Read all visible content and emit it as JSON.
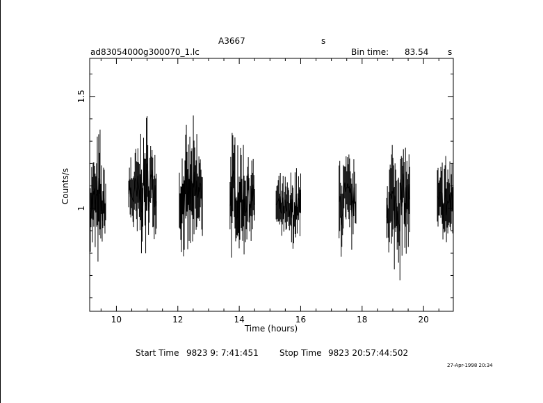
{
  "header": {
    "object": "A3667",
    "units_top": "s",
    "filename": "ad83054000g300070_1.lc",
    "bin_time_label": "Bin time:",
    "bin_time_value": "83.54",
    "bin_time_unit": "s"
  },
  "footer": {
    "start_label": "Start Time",
    "start_value": "9823  9: 7:41:451",
    "stop_label": "Stop Time",
    "stop_value": "9823 20:57:44:502",
    "timestamp": "27-Apr-1998 20:34"
  },
  "chart_data": {
    "type": "line",
    "title": "A3667",
    "xlabel": "Time (hours)",
    "ylabel": "Counts/s",
    "xlim": [
      9.13,
      20.97
    ],
    "ylim": [
      0.54,
      1.67
    ],
    "xticks": [
      10,
      12,
      14,
      16,
      18,
      20
    ],
    "yticks": [
      1,
      1.5
    ],
    "grid": false,
    "segments": [
      {
        "x": [
          9.15,
          9.25,
          9.35,
          9.45,
          9.55,
          9.65
        ],
        "y_low": [
          0.88,
          0.84,
          0.8,
          0.77,
          0.85,
          0.9
        ],
        "y_high": [
          1.18,
          1.21,
          1.23,
          1.28,
          1.16,
          1.14
        ]
      },
      {
        "x": [
          10.4,
          10.55,
          10.7,
          10.85,
          11.0,
          11.15,
          11.3
        ],
        "y_low": [
          0.95,
          0.9,
          0.85,
          0.87,
          0.88,
          0.92,
          0.95
        ],
        "y_high": [
          1.2,
          1.22,
          1.25,
          1.3,
          1.33,
          1.28,
          1.2
        ]
      },
      {
        "x": [
          12.05,
          12.25,
          12.45,
          12.65,
          12.8
        ],
        "y_low": [
          0.87,
          0.85,
          0.82,
          0.85,
          0.9
        ],
        "y_high": [
          1.18,
          1.26,
          1.3,
          1.27,
          1.22
        ]
      },
      {
        "x": [
          13.7,
          13.9,
          14.1,
          14.3,
          14.5
        ],
        "y_low": [
          0.85,
          0.84,
          0.85,
          0.87,
          0.92
        ],
        "y_high": [
          1.27,
          1.28,
          1.22,
          1.24,
          1.15
        ]
      },
      {
        "x": [
          15.2,
          15.6,
          15.8,
          16.0
        ],
        "y_low": [
          0.92,
          0.85,
          0.84,
          0.88
        ],
        "y_high": [
          1.11,
          1.1,
          1.14,
          1.13
        ]
      },
      {
        "x": [
          17.25,
          17.45,
          17.65,
          17.8
        ],
        "y_low": [
          0.82,
          0.85,
          0.87,
          0.9
        ],
        "y_high": [
          1.2,
          1.22,
          1.18,
          1.15
        ]
      },
      {
        "x": [
          18.8,
          19.0,
          19.2,
          19.4,
          19.55
        ],
        "y_low": [
          0.86,
          0.8,
          0.78,
          0.82,
          0.88
        ],
        "y_high": [
          1.18,
          1.23,
          1.28,
          1.25,
          1.2
        ]
      },
      {
        "x": [
          20.45,
          20.65,
          20.85,
          20.95
        ],
        "y_low": [
          0.88,
          0.86,
          0.85,
          0.88
        ],
        "y_high": [
          1.14,
          1.18,
          1.2,
          1.16
        ]
      }
    ]
  }
}
